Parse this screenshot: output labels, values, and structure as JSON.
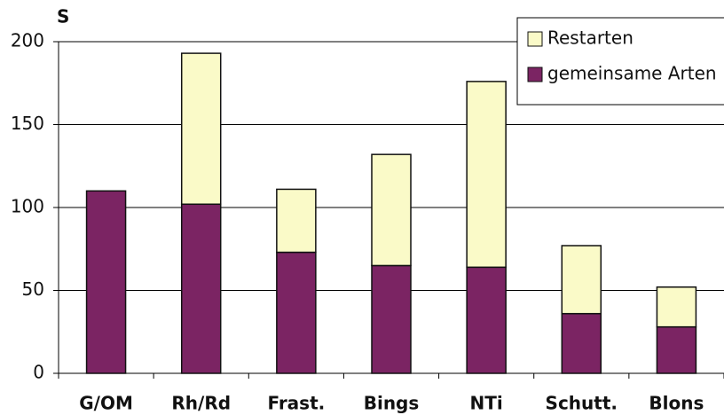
{
  "chart_data": {
    "type": "stacked_bar",
    "ylabel": "S",
    "categories": [
      "G/OM",
      "Rh/Rd",
      "Frast.",
      "Bings",
      "NTi",
      "Schutt.",
      "Blons"
    ],
    "series": [
      {
        "name": "gemeinsame Arten",
        "color": "#7b2463",
        "values": [
          110,
          102,
          73,
          65,
          64,
          36,
          28
        ]
      },
      {
        "name": "Restarten",
        "color": "#fafac8",
        "values": [
          0,
          91,
          38,
          67,
          112,
          41,
          24
        ]
      }
    ],
    "ylim": [
      0,
      200
    ],
    "yticks": [
      0,
      50,
      100,
      150,
      200
    ],
    "grid": true,
    "legend": "upper right"
  }
}
